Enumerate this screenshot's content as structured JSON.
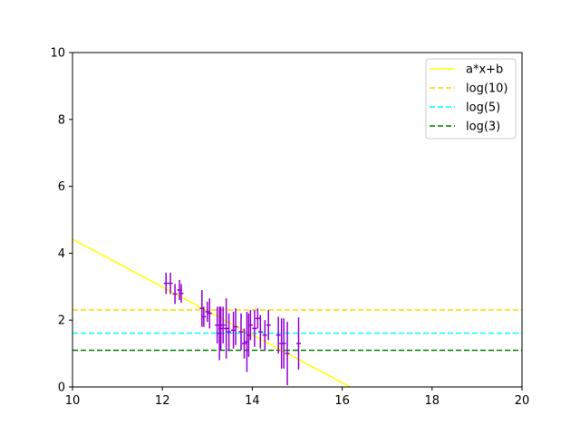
{
  "chart_data": {
    "type": "scatter",
    "title": "",
    "xlabel": "",
    "ylabel": "",
    "xlim": [
      10,
      20
    ],
    "ylim": [
      0,
      10
    ],
    "x_ticks": [
      "10",
      "12",
      "14",
      "16",
      "18",
      "20"
    ],
    "y_ticks": [
      "0",
      "2",
      "4",
      "6",
      "8",
      "10"
    ],
    "grid": false,
    "legend_position": "top-right",
    "errorbar_color": "#9400d3",
    "errorbar_points": [
      {
        "x": 12.08,
        "y": 3.1,
        "xerr": 0.05,
        "yerr": 0.32
      },
      {
        "x": 12.18,
        "y": 3.1,
        "xerr": 0.05,
        "yerr": 0.32
      },
      {
        "x": 12.28,
        "y": 2.78,
        "xerr": 0.05,
        "yerr": 0.3
      },
      {
        "x": 12.38,
        "y": 2.9,
        "xerr": 0.05,
        "yerr": 0.3
      },
      {
        "x": 12.42,
        "y": 2.8,
        "xerr": 0.05,
        "yerr": 0.28
      },
      {
        "x": 12.88,
        "y": 2.35,
        "xerr": 0.05,
        "yerr": 0.55
      },
      {
        "x": 12.92,
        "y": 2.1,
        "xerr": 0.05,
        "yerr": 0.3
      },
      {
        "x": 13.0,
        "y": 2.25,
        "xerr": 0.05,
        "yerr": 0.3
      },
      {
        "x": 13.05,
        "y": 2.2,
        "xerr": 0.05,
        "yerr": 0.45
      },
      {
        "x": 13.22,
        "y": 1.85,
        "xerr": 0.05,
        "yerr": 0.55
      },
      {
        "x": 13.27,
        "y": 1.6,
        "xerr": 0.05,
        "yerr": 0.8
      },
      {
        "x": 13.3,
        "y": 1.75,
        "xerr": 0.05,
        "yerr": 0.65
      },
      {
        "x": 13.35,
        "y": 1.85,
        "xerr": 0.05,
        "yerr": 0.55
      },
      {
        "x": 13.42,
        "y": 1.75,
        "xerr": 0.05,
        "yerr": 0.9
      },
      {
        "x": 13.48,
        "y": 1.65,
        "xerr": 0.05,
        "yerr": 0.55
      },
      {
        "x": 13.58,
        "y": 1.7,
        "xerr": 0.05,
        "yerr": 0.55
      },
      {
        "x": 13.63,
        "y": 1.8,
        "xerr": 0.05,
        "yerr": 0.55
      },
      {
        "x": 13.75,
        "y": 1.65,
        "xerr": 0.05,
        "yerr": 0.55
      },
      {
        "x": 13.82,
        "y": 1.3,
        "xerr": 0.05,
        "yerr": 0.45
      },
      {
        "x": 13.88,
        "y": 1.35,
        "xerr": 0.05,
        "yerr": 0.9
      },
      {
        "x": 13.92,
        "y": 1.55,
        "xerr": 0.05,
        "yerr": 0.65
      },
      {
        "x": 13.96,
        "y": 1.85,
        "xerr": 0.05,
        "yerr": 0.45
      },
      {
        "x": 14.05,
        "y": 1.75,
        "xerr": 0.05,
        "yerr": 0.55
      },
      {
        "x": 14.12,
        "y": 2.05,
        "xerr": 0.05,
        "yerr": 0.3
      },
      {
        "x": 14.18,
        "y": 1.65,
        "xerr": 0.05,
        "yerr": 0.5
      },
      {
        "x": 14.28,
        "y": 1.55,
        "xerr": 0.05,
        "yerr": 0.45
      },
      {
        "x": 14.36,
        "y": 1.85,
        "xerr": 0.05,
        "yerr": 0.45
      },
      {
        "x": 14.58,
        "y": 1.55,
        "xerr": 0.05,
        "yerr": 0.55
      },
      {
        "x": 14.65,
        "y": 1.3,
        "xerr": 0.05,
        "yerr": 0.75
      },
      {
        "x": 14.7,
        "y": 1.3,
        "xerr": 0.05,
        "yerr": 0.75
      },
      {
        "x": 14.78,
        "y": 1.0,
        "xerr": 0.05,
        "yerr": 0.95
      },
      {
        "x": 15.03,
        "y": 1.3,
        "xerr": 0.05,
        "yerr": 0.78
      }
    ],
    "series": [
      {
        "name": "a*x+b",
        "kind": "line",
        "style": "solid",
        "color": "#ffff00",
        "x": [
          10,
          16.18
        ],
        "y": [
          4.42,
          0
        ]
      },
      {
        "name": "log(10)",
        "kind": "hline",
        "style": "dashed",
        "color": "#ffd700",
        "y": 2.302585
      },
      {
        "name": "log(5)",
        "kind": "hline",
        "style": "dashed",
        "color": "#00ffff",
        "y": 1.609438
      },
      {
        "name": "log(3)",
        "kind": "hline",
        "style": "dashed",
        "color": "#008000",
        "y": 1.098612
      }
    ]
  }
}
